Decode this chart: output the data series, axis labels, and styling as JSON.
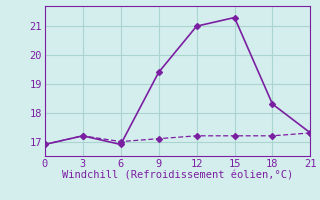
{
  "xlabel": "Windchill (Refroidissement éolien,°C)",
  "line1_x": [
    0,
    3,
    6,
    9,
    12,
    15,
    18,
    21
  ],
  "line1_y": [
    16.9,
    17.2,
    16.9,
    19.4,
    21.0,
    21.3,
    18.3,
    17.3
  ],
  "line2_x": [
    0,
    3,
    6,
    9,
    12,
    15,
    18,
    21
  ],
  "line2_y": [
    16.9,
    17.2,
    17.0,
    17.1,
    17.2,
    17.2,
    17.2,
    17.3
  ],
  "line_color": "#7b1fa2",
  "bg_color": "#d4eeed",
  "grid_color": "#aad4d0",
  "xlim": [
    0,
    21
  ],
  "ylim": [
    16.5,
    21.7
  ],
  "xticks": [
    0,
    3,
    6,
    9,
    12,
    15,
    18,
    21
  ],
  "yticks": [
    17,
    18,
    19,
    20,
    21
  ],
  "marker": "D",
  "markersize": 3,
  "linewidth1": 1.2,
  "linewidth2": 0.9,
  "tick_labelsize": 7.5,
  "xlabel_fontsize": 7.5
}
